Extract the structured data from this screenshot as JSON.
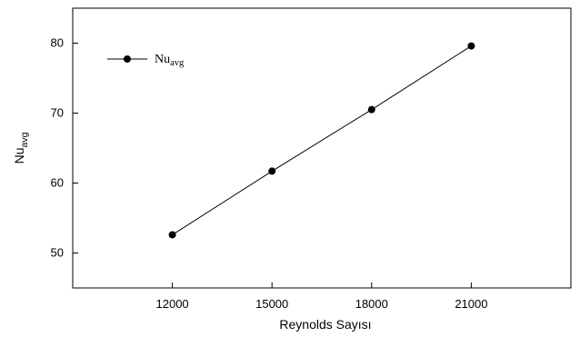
{
  "chart_data": {
    "type": "line",
    "x": [
      12000,
      15000,
      18000,
      21000
    ],
    "series": [
      {
        "name": "Nu",
        "name_subscript": "avg",
        "values": [
          52.6,
          61.7,
          70.5,
          79.6
        ]
      }
    ],
    "xlabel": "Reynolds Sayısı",
    "ylabel": "Nu",
    "ylabel_subscript": "avg",
    "xlim": [
      9000,
      24000
    ],
    "ylim": [
      45,
      85
    ],
    "xticks": [
      12000,
      15000,
      18000,
      21000
    ],
    "yticks": [
      50,
      60,
      70,
      80
    ],
    "grid": false,
    "legend_position": "top-left",
    "marker": "circle",
    "line_color": "#000000",
    "marker_color": "#000000"
  }
}
